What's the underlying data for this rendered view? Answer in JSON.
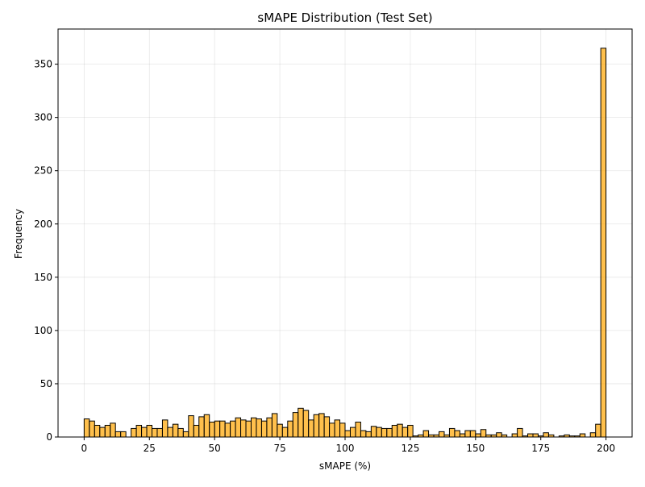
{
  "chart_data": {
    "type": "bar",
    "title": "sMAPE Distribution (Test Set)",
    "xlabel": "sMAPE (%)",
    "ylabel": "Frequency",
    "xlim": [
      -10,
      210
    ],
    "ylim": [
      0,
      383
    ],
    "xticks": [
      0,
      25,
      50,
      75,
      100,
      125,
      150,
      175,
      200
    ],
    "yticks": [
      0,
      50,
      100,
      150,
      200,
      250,
      300,
      350
    ],
    "grid": true,
    "bar_color": "#ffa500",
    "bar_alpha": 0.7,
    "edge_color": "#000000",
    "bin_width": 2,
    "bin_start": 0,
    "counts": [
      17,
      15,
      11,
      9,
      11,
      13,
      5,
      5,
      0,
      8,
      11,
      9,
      11,
      8,
      8,
      16,
      9,
      12,
      8,
      5,
      20,
      11,
      19,
      21,
      14,
      15,
      15,
      13,
      15,
      18,
      16,
      15,
      18,
      17,
      15,
      18,
      22,
      12,
      9,
      15,
      23,
      27,
      25,
      16,
      21,
      22,
      19,
      13,
      16,
      13,
      6,
      9,
      14,
      6,
      5,
      10,
      9,
      8,
      8,
      11,
      12,
      9,
      11,
      1,
      2,
      6,
      2,
      2,
      5,
      2,
      8,
      6,
      3,
      6,
      6,
      3,
      7,
      2,
      2,
      4,
      2,
      0,
      3,
      8,
      1,
      3,
      3,
      1,
      4,
      2,
      0,
      1,
      2,
      1,
      1,
      3,
      0,
      4,
      12,
      365
    ]
  }
}
